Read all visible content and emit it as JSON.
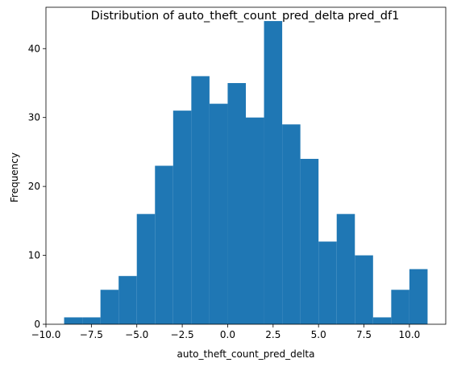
{
  "chart_data": {
    "type": "bar",
    "subtype": "histogram",
    "title": "Distribution of auto_theft_count_pred_delta pred_df1",
    "xlabel": "auto_theft_count_pred_delta",
    "ylabel": "Frequency",
    "xlim": [
      -10,
      12
    ],
    "ylim": [
      0,
      46
    ],
    "xticks": [
      -10,
      -7.5,
      -5,
      -2.5,
      0,
      2.5,
      5,
      7.5,
      10
    ],
    "xtick_labels": [
      "−10.0",
      "−7.5",
      "−5.0",
      "−2.5",
      "0.0",
      "2.5",
      "5.0",
      "7.5",
      "10.0"
    ],
    "yticks": [
      0,
      10,
      20,
      30,
      40
    ],
    "ytick_labels": [
      "0",
      "10",
      "20",
      "30",
      "40"
    ],
    "bin_edges": [
      -9,
      -8,
      -7,
      -6,
      -5,
      -4,
      -3,
      -2,
      -1,
      0,
      1,
      2,
      3,
      4,
      5,
      6,
      7,
      8,
      9,
      10,
      11
    ],
    "values": [
      1,
      1,
      5,
      7,
      16,
      23,
      31,
      36,
      32,
      35,
      30,
      44,
      29,
      24,
      12,
      16,
      10,
      1,
      5,
      8
    ],
    "bar_color": "#1f77b4",
    "grid": false,
    "legend": "none"
  }
}
